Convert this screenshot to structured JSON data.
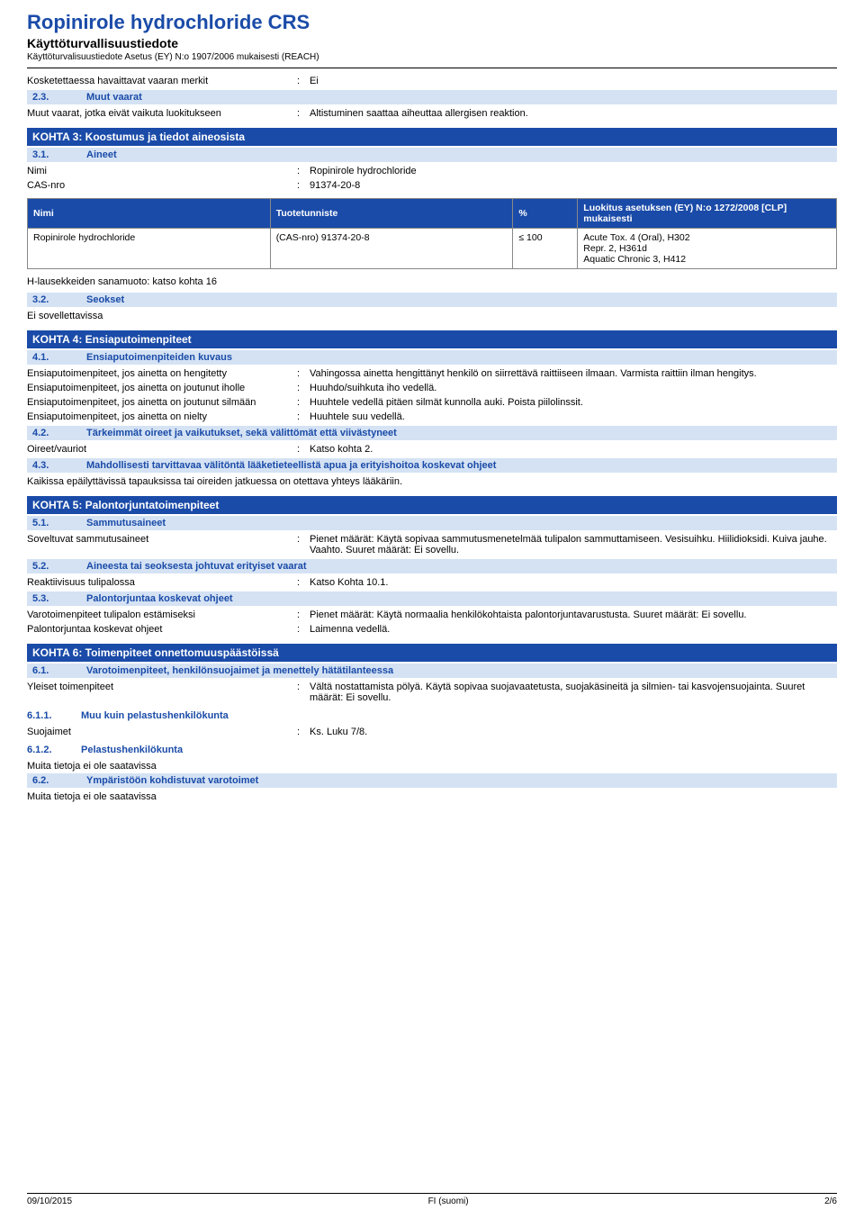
{
  "header": {
    "title": "Ropinirole hydrochloride CRS",
    "subtitle": "Käyttöturvallisuustiedote",
    "reg": "Käyttöturvalisuustiedote Asetus (EY) N:o 1907/2006 mukaisesti (REACH)"
  },
  "row_touch": {
    "label": "Kosketettaessa havaittavat vaaran merkit",
    "value": "Ei"
  },
  "s2_3": {
    "num": "2.3.",
    "title": "Muut vaarat",
    "row": {
      "label": "Muut vaarat, jotka eivät vaikuta luokitukseen",
      "value": "Altistuminen saattaa aiheuttaa allergisen reaktion."
    }
  },
  "k3": {
    "title": "KOHTA 3: Koostumus ja tiedot aineosista"
  },
  "s3_1": {
    "num": "3.1.",
    "title": "Aineet",
    "rows": [
      {
        "label": "Nimi",
        "value": "Ropinirole hydrochloride"
      },
      {
        "label": "CAS-nro",
        "value": "91374-20-8"
      }
    ]
  },
  "table3": {
    "headers": [
      "Nimi",
      "Tuotetunniste",
      "%",
      "Luokitus asetuksen (EY) N:o 1272/2008 [CLP] mukaisesti"
    ],
    "rows": [
      [
        "Ropinirole hydrochloride",
        "(CAS-nro) 91374-20-8",
        "≤ 100",
        "Acute Tox. 4 (Oral), H302\nRepr. 2, H361d\nAquatic Chronic 3, H412"
      ]
    ]
  },
  "h_note": "H-lausekkeiden sanamuoto: katso kohta 16",
  "s3_2": {
    "num": "3.2.",
    "title": "Seokset",
    "body": "Ei sovellettavissa"
  },
  "k4": {
    "title": "KOHTA 4: Ensiaputoimenpiteet"
  },
  "s4_1": {
    "num": "4.1.",
    "title": "Ensiaputoimenpiteiden kuvaus",
    "rows": [
      {
        "label": "Ensiaputoimenpiteet, jos ainetta on hengitetty",
        "value": "Vahingossa ainetta hengittänyt henkilö on siirrettävä raittiiseen ilmaan. Varmista raittiin ilman hengitys."
      },
      {
        "label": "Ensiaputoimenpiteet, jos ainetta on joutunut iholle",
        "value": "Huuhdo/suihkuta iho vedellä."
      },
      {
        "label": "Ensiaputoimenpiteet, jos ainetta on joutunut silmään",
        "value": "Huuhtele vedellä pitäen silmät kunnolla auki. Poista piilolinssit."
      },
      {
        "label": "Ensiaputoimenpiteet, jos ainetta on nielty",
        "value": "Huuhtele suu vedellä."
      }
    ]
  },
  "s4_2": {
    "num": "4.2.",
    "title": "Tärkeimmät oireet ja vaikutukset, sekä välittömät että viivästyneet",
    "rows": [
      {
        "label": "Oireet/vauriot",
        "value": "Katso kohta 2."
      }
    ]
  },
  "s4_3": {
    "num": "4.3.",
    "title": "Mahdollisesti tarvittavaa välitöntä lääketieteellistä apua ja erityishoitoa koskevat ohjeet",
    "body": "Kaikissa epäilyttävissä tapauksissa tai oireiden jatkuessa on otettava yhteys lääkäriin."
  },
  "k5": {
    "title": "KOHTA 5: Palontorjuntatoimenpiteet"
  },
  "s5_1": {
    "num": "5.1.",
    "title": "Sammutusaineet",
    "rows": [
      {
        "label": "Soveltuvat sammutusaineet",
        "value": "Pienet määrät: Käytä sopivaa sammutusmenetelmää tulipalon sammuttamiseen. Vesisuihku. Hiilidioksidi. Kuiva jauhe. Vaahto. Suuret määrät: Ei sovellu."
      }
    ]
  },
  "s5_2": {
    "num": "5.2.",
    "title": "Aineesta tai seoksesta johtuvat erityiset vaarat",
    "rows": [
      {
        "label": "Reaktiivisuus tulipalossa",
        "value": "Katso Kohta 10.1."
      }
    ]
  },
  "s5_3": {
    "num": "5.3.",
    "title": "Palontorjuntaa koskevat ohjeet",
    "rows": [
      {
        "label": "Varotoimenpiteet tulipalon estämiseksi",
        "value": "Pienet määrät: Käytä normaalia henkilökohtaista palontorjuntavarustusta. Suuret määrät: Ei sovellu."
      },
      {
        "label": "Palontorjuntaa koskevat ohjeet",
        "value": "Laimenna vedellä."
      }
    ]
  },
  "k6": {
    "title": "KOHTA 6: Toimenpiteet onnettomuuspäästöissä"
  },
  "s6_1": {
    "num": "6.1.",
    "title": "Varotoimenpiteet, henkilönsuojaimet ja menettely hätätilanteessa",
    "rows": [
      {
        "label": "Yleiset toimenpiteet",
        "value": "Vältä nostattamista pölyä. Käytä sopivaa suojavaatetusta, suojakäsineitä ja silmien- tai kasvojensuojainta. Suuret määrät: Ei sovellu."
      }
    ]
  },
  "s6_1_1": {
    "num": "6.1.1.",
    "title": "Muu kuin pelastushenkilökunta",
    "rows": [
      {
        "label": "Suojaimet",
        "value": "Ks. Luku 7/8."
      }
    ]
  },
  "s6_1_2": {
    "num": "6.1.2.",
    "title": "Pelastushenkilökunta",
    "body": "Muita tietoja ei ole saatavissa"
  },
  "s6_2": {
    "num": "6.2.",
    "title": "Ympäristöön kohdistuvat varotoimet",
    "body": "Muita tietoja ei ole saatavissa"
  },
  "footer": {
    "date": "09/10/2015",
    "lang": "FI (suomi)",
    "page": "2/6"
  }
}
